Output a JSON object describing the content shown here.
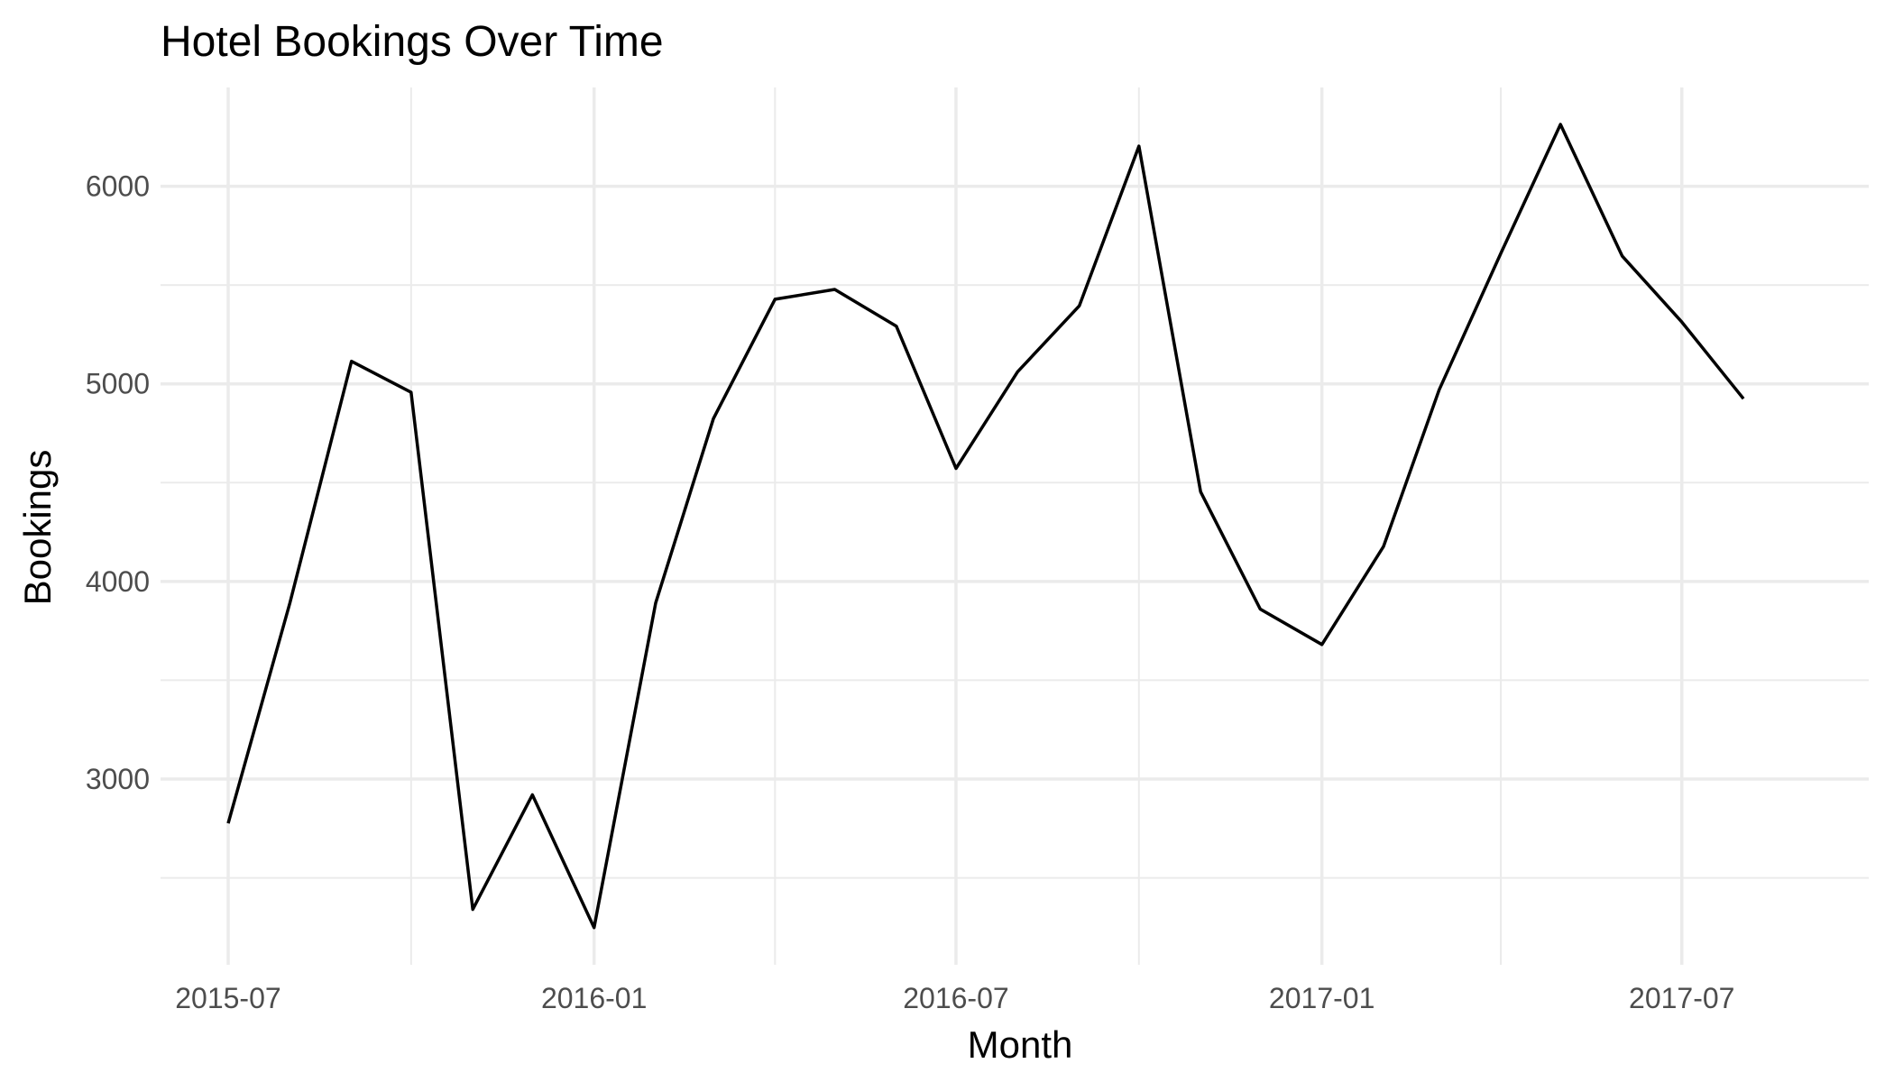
{
  "chart_data": {
    "type": "line",
    "title": "Hotel Bookings Over Time",
    "xlabel": "Month",
    "ylabel": "Bookings",
    "x": [
      "2015-07",
      "2015-08",
      "2015-09",
      "2015-10",
      "2015-11",
      "2015-12",
      "2016-01",
      "2016-02",
      "2016-03",
      "2016-04",
      "2016-05",
      "2016-06",
      "2016-07",
      "2016-08",
      "2016-09",
      "2016-10",
      "2016-11",
      "2016-12",
      "2017-01",
      "2017-02",
      "2017-03",
      "2017-04",
      "2017-05",
      "2017-06",
      "2017-07",
      "2017-08"
    ],
    "series": [
      {
        "values": [
          2776,
          3889,
          5114,
          4957,
          2340,
          2920,
          2248,
          3891,
          4824,
          5428,
          5478,
          5292,
          4572,
          5061,
          5395,
          6203,
          4454,
          3860,
          3681,
          4177,
          4970,
          5661,
          6313,
          5647,
          5313,
          4925
        ]
      }
    ],
    "xlim": [
      "2015-05-28",
      "2017-10-03"
    ],
    "ylim": [
      2060,
      6500
    ],
    "x_ticks": [
      "2015-07",
      "2016-01",
      "2016-07",
      "2017-01",
      "2017-07"
    ],
    "x_minor_ticks": [
      "2015-10",
      "2016-04",
      "2016-10",
      "2017-04"
    ],
    "y_ticks": [
      3000,
      4000,
      5000,
      6000
    ],
    "y_minor_ticks": [
      2500,
      3500,
      4500,
      5500
    ],
    "grid": true,
    "legend": "none",
    "colors": {
      "line": "#000000",
      "grid": "#ebebeb",
      "tick_text": "#4d4d4d",
      "background": "#ffffff"
    }
  }
}
